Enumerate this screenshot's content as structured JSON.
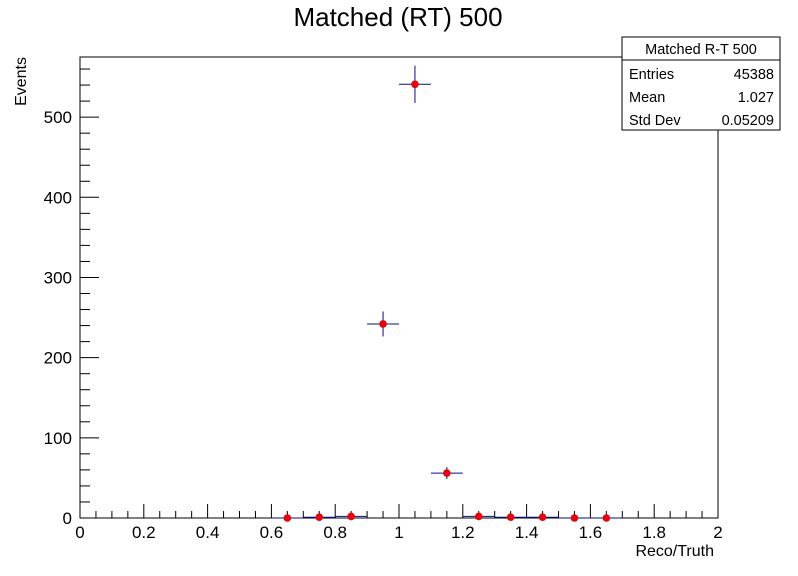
{
  "chart_data": {
    "type": "scatter",
    "title": "Matched (RT) 500",
    "xlabel": "Reco/Truth",
    "ylabel": "Events",
    "xlim": [
      0,
      2
    ],
    "ylim": [
      0,
      575
    ],
    "x_ticks": [
      "0",
      "0.2",
      "0.4",
      "0.6",
      "0.8",
      "1",
      "1.2",
      "1.4",
      "1.6",
      "1.8",
      "2"
    ],
    "y_ticks": [
      "0",
      "100",
      "200",
      "300",
      "400",
      "500"
    ],
    "bin_width": 0.1,
    "series": [
      {
        "marker_color": "#e8000b",
        "error_color": "#0a0a8c",
        "points": [
          {
            "x": 0.65,
            "y": 0
          },
          {
            "x": 0.75,
            "y": 1
          },
          {
            "x": 0.85,
            "y": 2
          },
          {
            "x": 0.95,
            "y": 242
          },
          {
            "x": 1.05,
            "y": 541
          },
          {
            "x": 1.15,
            "y": 56
          },
          {
            "x": 1.25,
            "y": 2
          },
          {
            "x": 1.35,
            "y": 1
          },
          {
            "x": 1.45,
            "y": 1
          },
          {
            "x": 1.55,
            "y": 0
          },
          {
            "x": 1.65,
            "y": 0
          }
        ]
      }
    ],
    "stats_box": {
      "name": "Matched R-T 500",
      "rows": [
        {
          "label": "Entries",
          "value": "45388"
        },
        {
          "label": "Mean",
          "value": "1.027"
        },
        {
          "label": "Std Dev",
          "value": "0.05209"
        }
      ]
    },
    "grid": false
  }
}
